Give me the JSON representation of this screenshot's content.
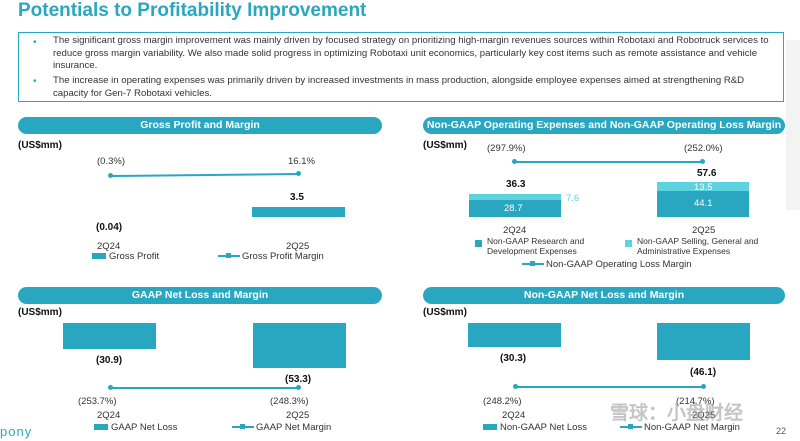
{
  "title": "Potentials to Profitability Improvement",
  "bullets": [
    "The significant gross margin improvement was mainly driven by focused strategy on prioritizing high-margin revenues sources within Robotaxi and Robotruck services to reduce gross margin variability. We also made solid progress in optimizing Robotaxi unit economics, particularly key cost items such as remote assistance and vehicle insurance.",
    "The increase in operating expenses was primarily driven by increased investments in mass production, alongside employee expenses aimed at strengthening R&D capacity for Gen-7 Robotaxi vehicles."
  ],
  "bullet_marker": "•",
  "unit": "(US$mm)",
  "periods": [
    "2Q24",
    "2Q25"
  ],
  "charts": {
    "gross": {
      "title": "Gross Profit and Margin",
      "margins": [
        "(0.3%)",
        "16.1%"
      ],
      "values": [
        "(0.04)",
        "3.5"
      ],
      "legend_bar": "Gross Profit",
      "legend_line": "Gross Profit Margin"
    },
    "nongaap_opex": {
      "title": "Non-GAAP Operating Expenses and Non-GAAP Operating Loss Margin",
      "margins": [
        "(297.9%)",
        "(252.0%)"
      ],
      "totals": [
        "36.3",
        "57.6"
      ],
      "rd": [
        "28.7",
        "44.1"
      ],
      "sga": [
        "7.6",
        "13.5"
      ],
      "legend_rd": "Non-GAAP Research and Development Expenses",
      "legend_sga": "Non-GAAP Selling, General and Administrative Expenses",
      "legend_line": "Non-GAAP Operating Loss Margin"
    },
    "gaap_loss": {
      "title": "GAAP Net Loss and Margin",
      "values": [
        "(30.9)",
        "(53.3)"
      ],
      "margins": [
        "(253.7%)",
        "(248.3%)"
      ],
      "legend_bar": "GAAP Net Loss",
      "legend_line": "GAAP Net Margin"
    },
    "nongaap_loss": {
      "title": "Non-GAAP Net Loss and Margin",
      "values": [
        "(30.3)",
        "(46.1)"
      ],
      "margins": [
        "(248.2%)",
        "(214.7%)"
      ],
      "legend_bar": "Non-GAAP Net Loss",
      "legend_line": "Non-GAAP Net Margin"
    }
  },
  "chart_data": [
    {
      "type": "bar",
      "title": "Gross Profit and Margin",
      "categories": [
        "2Q24",
        "2Q25"
      ],
      "series": [
        {
          "name": "Gross Profit",
          "values": [
            -0.04,
            3.5
          ]
        },
        {
          "name": "Gross Profit Margin",
          "values": [
            -0.3,
            16.1
          ]
        }
      ],
      "ylabel": "(US$mm)"
    },
    {
      "type": "bar",
      "title": "Non-GAAP Operating Expenses and Non-GAAP Operating Loss Margin",
      "categories": [
        "2Q24",
        "2Q25"
      ],
      "series": [
        {
          "name": "Non-GAAP Research and Development Expenses",
          "values": [
            28.7,
            44.1
          ]
        },
        {
          "name": "Non-GAAP Selling, General and Administrative Expenses",
          "values": [
            7.6,
            13.5
          ]
        },
        {
          "name": "Non-GAAP Operating Loss Margin",
          "values": [
            -297.9,
            -252.0
          ]
        }
      ],
      "ylabel": "(US$mm)"
    },
    {
      "type": "bar",
      "title": "GAAP Net Loss and Margin",
      "categories": [
        "2Q24",
        "2Q25"
      ],
      "series": [
        {
          "name": "GAAP Net Loss",
          "values": [
            -30.9,
            -53.3
          ]
        },
        {
          "name": "GAAP Net Margin",
          "values": [
            -253.7,
            -248.3
          ]
        }
      ],
      "ylabel": "(US$mm)"
    },
    {
      "type": "bar",
      "title": "Non-GAAP Net Loss and Margin",
      "categories": [
        "2Q24",
        "2Q25"
      ],
      "series": [
        {
          "name": "Non-GAAP Net Loss",
          "values": [
            -30.3,
            -46.1
          ]
        },
        {
          "name": "Non-GAAP Net Margin",
          "values": [
            -248.2,
            -214.7
          ]
        }
      ],
      "ylabel": "(US$mm)"
    }
  ],
  "logo": "pony",
  "page_number": "22",
  "watermark": "雪球：小盘财经",
  "colors": {
    "accent": "#2aa7c0",
    "accent_light": "#5dd3e0"
  }
}
